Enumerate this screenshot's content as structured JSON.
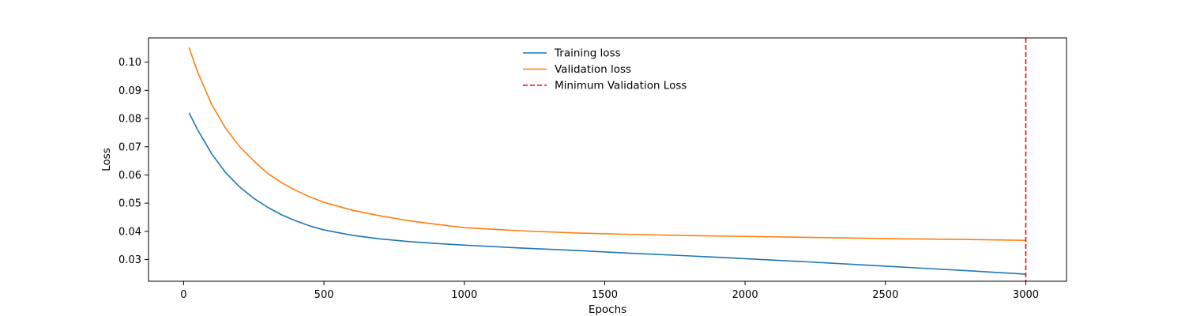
{
  "chart_data": {
    "type": "line",
    "xlabel": "Epochs",
    "ylabel": "Loss",
    "xlim": [
      -125,
      3145
    ],
    "ylim": [
      0.0223,
      0.1086
    ],
    "x_ticks": [
      0,
      500,
      1000,
      1500,
      2000,
      2500,
      3000
    ],
    "x_tick_labels": [
      "0",
      "500",
      "1000",
      "1500",
      "2000",
      "2500",
      "3000"
    ],
    "y_ticks": [
      0.03,
      0.04,
      0.05,
      0.06,
      0.07,
      0.08,
      0.09,
      0.1
    ],
    "y_tick_labels": [
      "0.03",
      "0.04",
      "0.05",
      "0.06",
      "0.07",
      "0.08",
      "0.09",
      "0.10"
    ],
    "grid": false,
    "legend_position": "top-center",
    "series": [
      {
        "name": "Training loss",
        "color": "#1f77b4",
        "style": "solid",
        "x": [
          20,
          50,
          100,
          150,
          200,
          250,
          300,
          350,
          400,
          450,
          500,
          600,
          700,
          800,
          900,
          1000,
          1200,
          1400,
          1600,
          1800,
          2000,
          2200,
          2400,
          2600,
          2800,
          3000
        ],
        "y": [
          0.0819,
          0.076,
          0.0675,
          0.0608,
          0.0557,
          0.0517,
          0.0485,
          0.0458,
          0.0437,
          0.0419,
          0.0405,
          0.0386,
          0.0373,
          0.0364,
          0.0357,
          0.0351,
          0.0341,
          0.0332,
          0.0322,
          0.0313,
          0.0303,
          0.0293,
          0.0282,
          0.0271,
          0.026,
          0.0248
        ]
      },
      {
        "name": "Validation loss",
        "color": "#ff7f0e",
        "style": "solid",
        "x": [
          20,
          50,
          100,
          150,
          200,
          250,
          300,
          350,
          400,
          450,
          500,
          600,
          700,
          800,
          900,
          1000,
          1200,
          1400,
          1600,
          1800,
          2000,
          2200,
          2400,
          2600,
          2800,
          3000
        ],
        "y": [
          0.105,
          0.0965,
          0.085,
          0.0765,
          0.07,
          0.065,
          0.0605,
          0.0572,
          0.0545,
          0.0522,
          0.0503,
          0.0475,
          0.0455,
          0.0438,
          0.0425,
          0.0413,
          0.0402,
          0.0394,
          0.0389,
          0.0385,
          0.0382,
          0.0379,
          0.0376,
          0.0373,
          0.0371,
          0.0368
        ]
      },
      {
        "name": "Minimum Validation Loss",
        "color": "#ff0000",
        "style": "dashed",
        "vline_x": 3000
      }
    ]
  }
}
